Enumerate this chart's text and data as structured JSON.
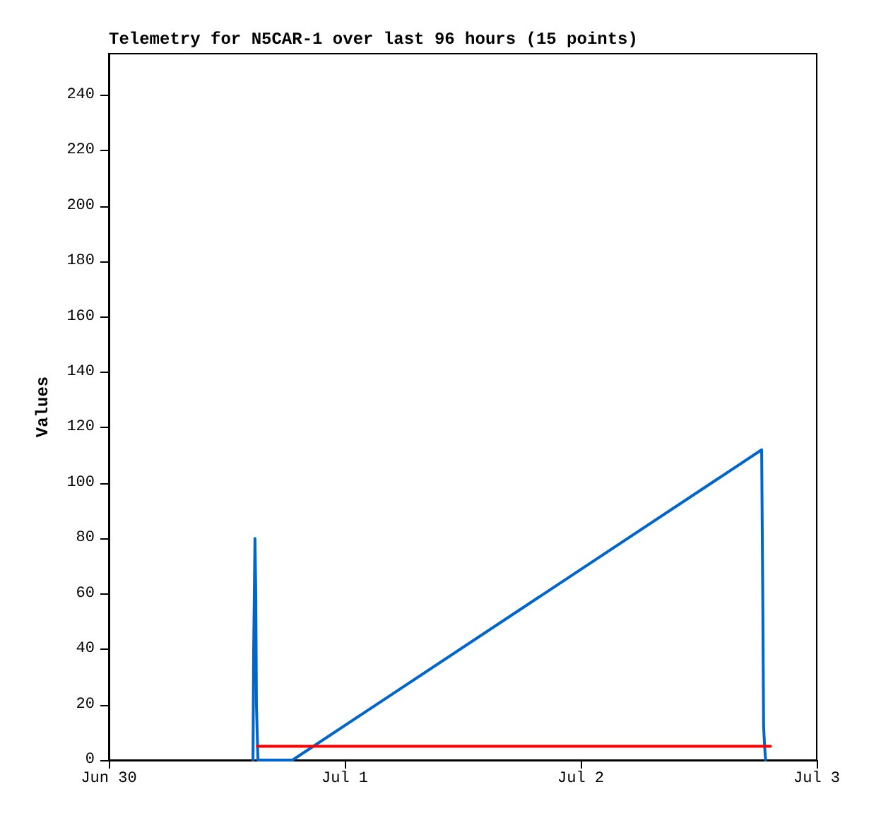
{
  "chart_data": {
    "type": "line",
    "title": "Telemetry for N5CAR-1 over last 96 hours (15 points)",
    "ylabel": "Values",
    "xlim": [
      "--06-30",
      "--07-03"
    ],
    "xticks": [
      {
        "value": "--06-30",
        "label": "Jun 30"
      },
      {
        "value": "--07-01",
        "label": "Jul 1"
      },
      {
        "value": "--07-02",
        "label": "Jul 2"
      },
      {
        "value": "--07-03",
        "label": "Jul 3"
      }
    ],
    "ylim": [
      0,
      255
    ],
    "yticks": [
      0,
      20,
      40,
      60,
      80,
      100,
      120,
      140,
      160,
      180,
      200,
      220,
      240
    ],
    "grid": false,
    "marker": "none",
    "line_style": "solid",
    "series": [
      {
        "color": "#0066cc",
        "x": [
          "--06-30T14:40",
          "--06-30T14:44",
          "--06-30T14:52",
          "--06-30T14:57",
          "--06-30T15:01",
          "--06-30T15:10",
          "--06-30T18:41",
          "--07-02T18:24",
          "--07-02T18:30",
          "--07-02T18:36",
          "--07-02T18:42",
          "--07-02T18:48"
        ],
        "values": [
          0,
          40,
          80,
          60,
          20,
          0,
          0,
          112,
          65,
          12,
          5,
          0
        ]
      },
      {
        "color": "#ff0000",
        "x": [
          "--06-30T15:06",
          "--07-02T19:18"
        ],
        "values": [
          5,
          5
        ]
      }
    ]
  }
}
